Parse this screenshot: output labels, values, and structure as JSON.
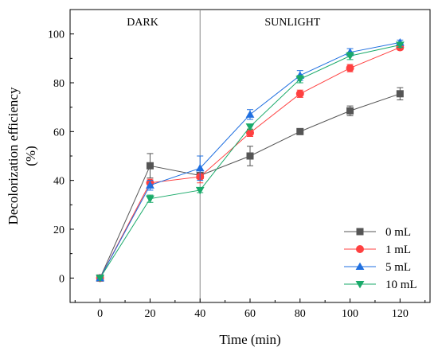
{
  "chart_data": {
    "type": "line",
    "xlabel": "Time (min)",
    "ylabel_lines": [
      "Decolorization efficiency",
      "(%)"
    ],
    "xlim": [
      -12,
      132
    ],
    "ylim": [
      -10,
      110
    ],
    "xticks": [
      0,
      20,
      40,
      60,
      80,
      100,
      120
    ],
    "yticks": [
      0,
      20,
      40,
      60,
      80,
      100
    ],
    "divider_x": 40,
    "regions": [
      {
        "label": "DARK",
        "x_center": 17
      },
      {
        "label": "SUNLIGHT",
        "x_center": 77
      }
    ],
    "legend_position": "bottom-right",
    "grid": false,
    "series": [
      {
        "name": "0 mL",
        "color": "#555555",
        "marker": "square",
        "x": [
          0,
          20,
          40,
          60,
          80,
          100,
          120
        ],
        "y": [
          0,
          46,
          42,
          50,
          60,
          68.5,
          75.5
        ],
        "err": [
          0,
          5,
          0,
          4,
          0,
          2,
          2.5
        ]
      },
      {
        "name": "1 mL",
        "color": "#ff4040",
        "marker": "circle",
        "x": [
          0,
          20,
          40,
          60,
          80,
          100,
          120
        ],
        "y": [
          0,
          39,
          41.5,
          59.5,
          75.5,
          86,
          94.5
        ],
        "err": [
          0,
          1.5,
          2.5,
          1.5,
          1.5,
          1.5,
          1
        ]
      },
      {
        "name": "5 mL",
        "color": "#1f6fe0",
        "marker": "triangle-up",
        "x": [
          0,
          20,
          40,
          60,
          80,
          100,
          120
        ],
        "y": [
          0,
          38,
          45,
          67,
          83,
          92.5,
          96.5
        ],
        "err": [
          0,
          2,
          5,
          2,
          2,
          1.5,
          1
        ]
      },
      {
        "name": "10 mL",
        "color": "#1aaa6a",
        "marker": "triangle-down",
        "x": [
          0,
          20,
          40,
          60,
          80,
          100,
          120
        ],
        "y": [
          0,
          32.5,
          36,
          62,
          81.5,
          91,
          95.5
        ],
        "err": [
          0,
          1.5,
          1,
          1,
          1.5,
          1.5,
          1
        ]
      }
    ]
  }
}
